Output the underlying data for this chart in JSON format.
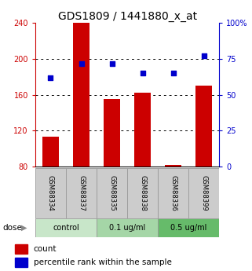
{
  "title": "GDS1809 / 1441880_x_at",
  "samples": [
    "GSM88334",
    "GSM88337",
    "GSM88335",
    "GSM88338",
    "GSM88336",
    "GSM88399"
  ],
  "bar_values": [
    113,
    240,
    155,
    162,
    82,
    170
  ],
  "percentile_values": [
    62,
    72,
    72,
    65,
    65,
    77
  ],
  "groups": [
    {
      "label": "control",
      "start": 0,
      "end": 2,
      "color": "#c8e6c9"
    },
    {
      "label": "0.1 ug/ml",
      "start": 2,
      "end": 4,
      "color": "#a5d6a7"
    },
    {
      "label": "0.5 ug/ml",
      "start": 4,
      "end": 6,
      "color": "#66bb6a"
    }
  ],
  "bar_color": "#cc0000",
  "dot_color": "#0000cc",
  "left_ylim": [
    80,
    240
  ],
  "right_ylim": [
    0,
    100
  ],
  "left_yticks": [
    80,
    120,
    160,
    200,
    240
  ],
  "right_yticks": [
    0,
    25,
    50,
    75,
    100
  ],
  "right_yticklabels": [
    "0",
    "25",
    "50",
    "75",
    "100%"
  ],
  "grid_values": [
    120,
    160,
    200
  ],
  "left_tick_color": "#cc0000",
  "right_tick_color": "#0000cc",
  "title_fontsize": 10,
  "tick_fontsize": 7,
  "label_fontsize": 7,
  "bar_width": 0.55,
  "dose_label": "dose",
  "sample_box_color": "#cccccc",
  "legend_count": "count",
  "legend_pct": "percentile rank within the sample"
}
